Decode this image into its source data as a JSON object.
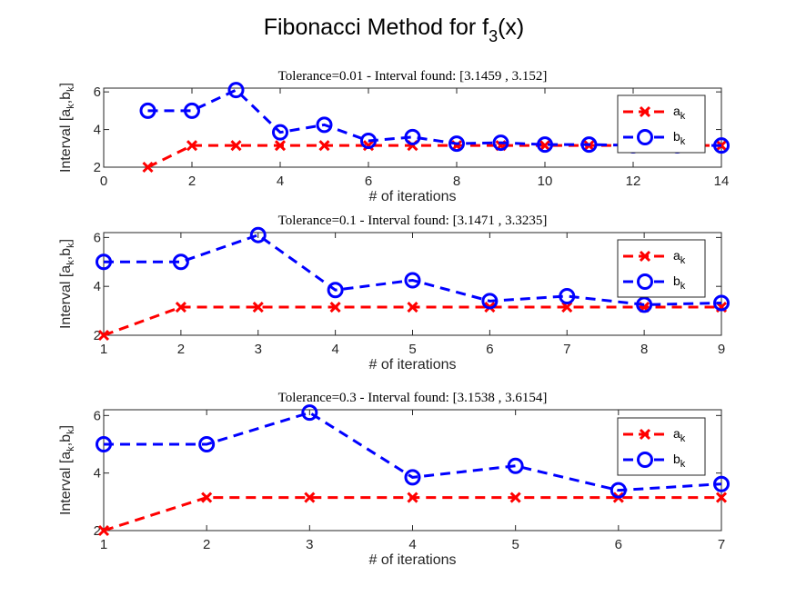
{
  "figure": {
    "title": "Fibonacci Method for f",
    "title_sub": "3",
    "title_suffix": "(x)"
  },
  "chart_data": [
    {
      "type": "line",
      "title": "Tolerance=0.01 - Interval found: [3.1459 , 3.152]",
      "xlabel": "# of iterations",
      "ylabel": "Interval [a_k,b_k]",
      "xlim": [
        0,
        14
      ],
      "ylim": [
        2,
        6.2
      ],
      "xticks": [
        0,
        2,
        4,
        6,
        8,
        10,
        12,
        14
      ],
      "yticks": [
        2,
        4,
        6
      ],
      "grid": false,
      "legend_position": "top-right",
      "x": [
        1,
        2,
        3,
        4,
        5,
        6,
        7,
        8,
        9,
        10,
        11,
        12,
        13,
        14
      ],
      "series": [
        {
          "name": "a_k",
          "color": "#ff0000",
          "marker": "x",
          "values": [
            2,
            3.15,
            3.15,
            3.15,
            3.15,
            3.15,
            3.15,
            3.15,
            3.15,
            3.15,
            3.15,
            3.15,
            3.15,
            3.15
          ]
        },
        {
          "name": "b_k",
          "color": "#0000ff",
          "marker": "o",
          "values": [
            5,
            5,
            6.1,
            3.85,
            4.25,
            3.4,
            3.6,
            3.25,
            3.3,
            3.2,
            3.2,
            3.16,
            3.16,
            3.15
          ]
        }
      ]
    },
    {
      "type": "line",
      "title": "Tolerance=0.1 - Interval found: [3.1471 , 3.3235]",
      "xlabel": "# of iterations",
      "ylabel": "Interval [a_k,b_k]",
      "xlim": [
        1,
        9
      ],
      "ylim": [
        2,
        6.2
      ],
      "xticks": [
        1,
        2,
        3,
        4,
        5,
        6,
        7,
        8,
        9
      ],
      "yticks": [
        2,
        4,
        6
      ],
      "grid": false,
      "legend_position": "top-right",
      "x": [
        1,
        2,
        3,
        4,
        5,
        6,
        7,
        8,
        9
      ],
      "series": [
        {
          "name": "a_k",
          "color": "#ff0000",
          "marker": "x",
          "values": [
            2,
            3.15,
            3.15,
            3.15,
            3.15,
            3.15,
            3.15,
            3.15,
            3.15
          ]
        },
        {
          "name": "b_k",
          "color": "#0000ff",
          "marker": "o",
          "values": [
            5,
            5,
            6.1,
            3.85,
            4.25,
            3.4,
            3.6,
            3.25,
            3.32
          ]
        }
      ]
    },
    {
      "type": "line",
      "title": "Tolerance=0.3 - Interval found: [3.1538 , 3.6154]",
      "xlabel": "# of iterations",
      "ylabel": "Interval [a_k,b_k]",
      "xlim": [
        1,
        7
      ],
      "ylim": [
        2,
        6.2
      ],
      "xticks": [
        1,
        2,
        3,
        4,
        5,
        6,
        7
      ],
      "yticks": [
        2,
        4,
        6
      ],
      "grid": false,
      "legend_position": "top-right",
      "x": [
        1,
        2,
        3,
        4,
        5,
        6,
        7
      ],
      "series": [
        {
          "name": "a_k",
          "color": "#ff0000",
          "marker": "x",
          "values": [
            2,
            3.15,
            3.15,
            3.15,
            3.15,
            3.15,
            3.15
          ]
        },
        {
          "name": "b_k",
          "color": "#0000ff",
          "marker": "o",
          "values": [
            5,
            5,
            6.1,
            3.85,
            4.25,
            3.4,
            3.62
          ]
        }
      ]
    }
  ]
}
